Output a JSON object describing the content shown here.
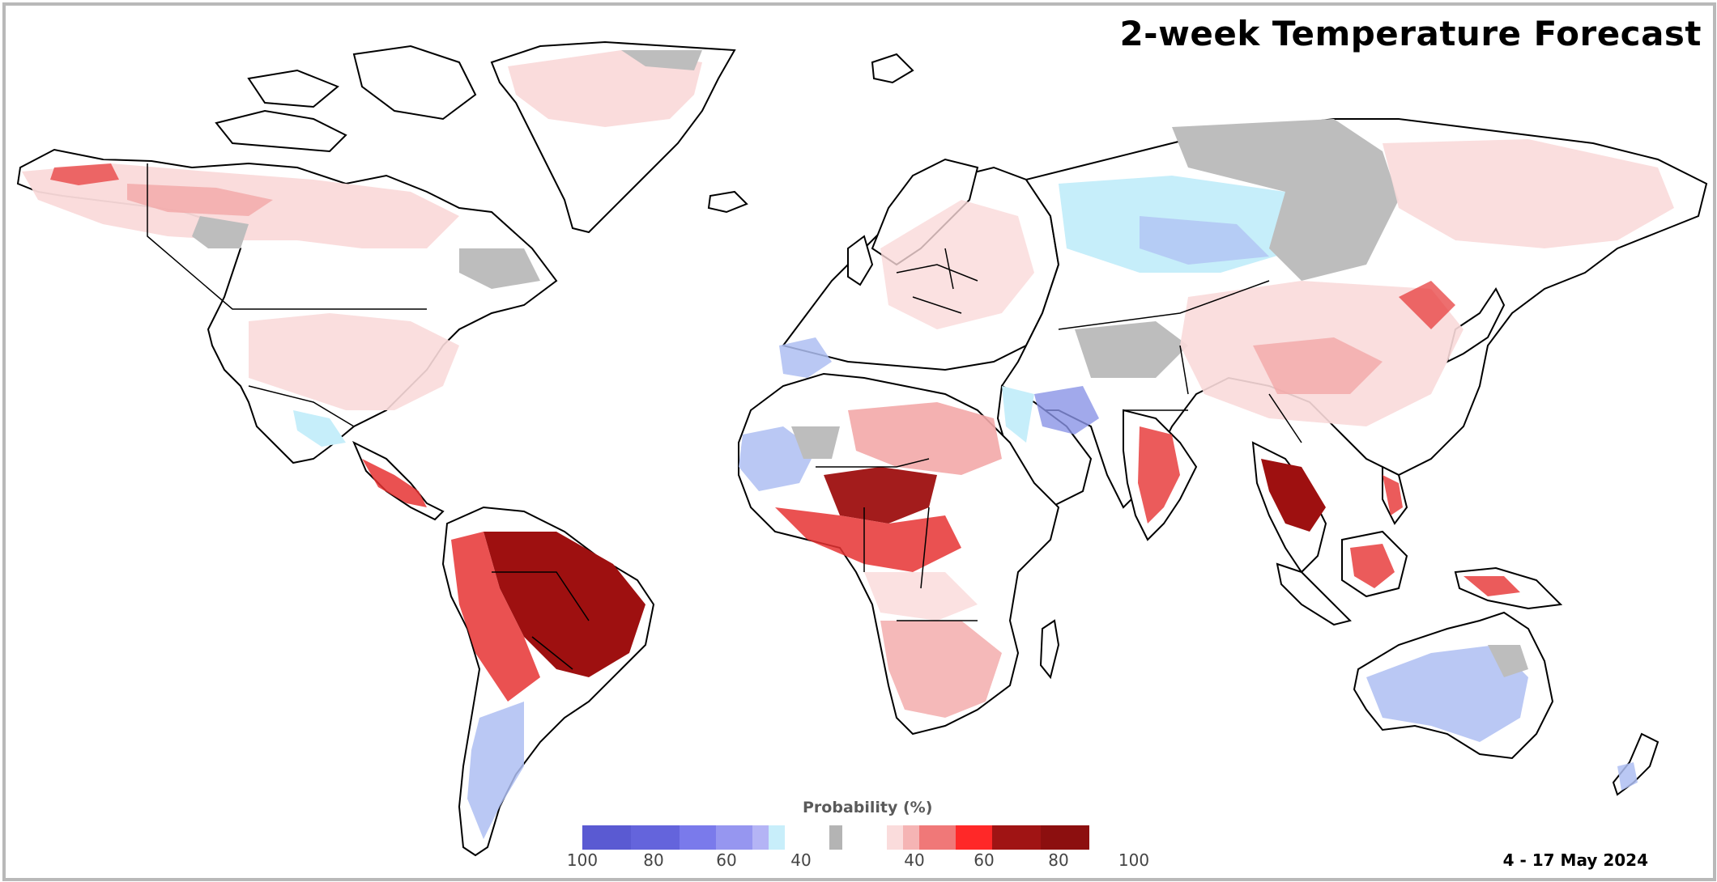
{
  "title": "2-week Temperature Forecast",
  "date_range": "4 - 17 May 2024",
  "legend": {
    "title": "Probability (%)",
    "cold_ticks": [
      "100",
      "80",
      "60",
      "40"
    ],
    "warm_ticks": [
      "40",
      "60",
      "80",
      "100"
    ],
    "cold_colors": [
      "#5a5ad2",
      "#6464dc",
      "#7a7aeb",
      "#9696f0",
      "#b4b4f5",
      "#c8eefa"
    ],
    "neutral_color": "#b4b4b4",
    "warm_colors": [
      "#fadcdc",
      "#f5b4b4",
      "#f07878",
      "#ff2828",
      "#a01414",
      "#8c0f0f"
    ]
  },
  "map_colors": {
    "cold_weak": "#c6eefa",
    "cold_mid": "#aebef2",
    "cold_strong": "#8a94e6",
    "neutral": "#bdbdbd",
    "warm_weak": "#fadada",
    "warm_mid": "#f3a8a8",
    "warm_strong": "#e63232",
    "warm_extreme": "#9e1010",
    "land": "#ffffff",
    "border": "#000000"
  }
}
